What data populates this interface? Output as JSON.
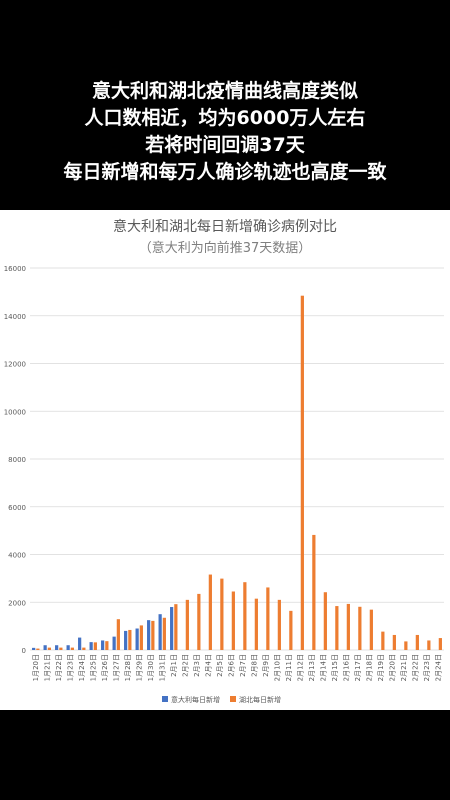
{
  "caption": {
    "lines": [
      "意大利和湖北疫情曲线高度类似",
      "人口数相近，均为6000万人左右",
      "若将时间回调37天",
      "每日新增和每万人确诊轨迹也高度一致"
    ]
  },
  "colors": {
    "italy": "#4472c4",
    "hubei": "#ed7d31",
    "grid": "#d9d9d9",
    "axis_text": "#595959"
  },
  "chart_data": {
    "type": "bar",
    "title": "意大利和湖北每日新增确诊病例对比",
    "subtitle": "（意大利为向前推37天数据）",
    "ylim": [
      0,
      16000
    ],
    "yticks": [
      0,
      2000,
      4000,
      6000,
      8000,
      10000,
      12000,
      14000,
      16000
    ],
    "categories": [
      "1月20日",
      "1月21日",
      "1月22日",
      "1月23日",
      "1月24日",
      "1月25日",
      "1月26日",
      "1月27日",
      "1月28日",
      "1月29日",
      "1月30日",
      "1月31日",
      "2月1日",
      "2月2日",
      "2月3日",
      "2月4日",
      "2月5日",
      "2月6日",
      "2月7日",
      "2月8日",
      "2月9日",
      "2月10日",
      "2月11日",
      "2月12日",
      "2月13日",
      "2月14日",
      "2月15日",
      "2月16日",
      "2月17日",
      "2月18日",
      "2月19日",
      "2月20日",
      "2月21日",
      "2月22日",
      "2月23日",
      "2月24日"
    ],
    "series": [
      {
        "name": "意大利每日新增",
        "values": [
          90,
          200,
          200,
          200,
          520,
          330,
          400,
          560,
          800,
          900,
          1250,
          1500,
          1800,
          null,
          null,
          null,
          null,
          null,
          null,
          null,
          null,
          null,
          null,
          null,
          null,
          null,
          null,
          null,
          null,
          null,
          null,
          null,
          null,
          null,
          null,
          null
        ]
      },
      {
        "name": "湖北每日新增",
        "values": [
          60,
          100,
          100,
          100,
          100,
          320,
          370,
          1290,
          840,
          1030,
          1220,
          1350,
          1920,
          2100,
          2350,
          3160,
          2990,
          2450,
          2840,
          2150,
          2620,
          2100,
          1640,
          14840,
          4820,
          2420,
          1840,
          1930,
          1810,
          1690,
          770,
          630,
          360,
          630,
          400,
          500
        ]
      }
    ],
    "legend_position": "bottom-center",
    "grid": true
  }
}
